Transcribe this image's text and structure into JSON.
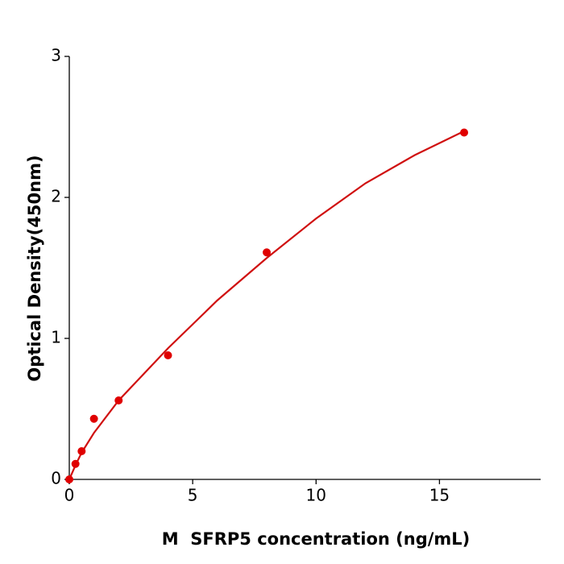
{
  "chart_data": {
    "type": "scatter",
    "x_label": "M  SFRP5 concentration (ng/mL)",
    "y_label": "Optical Density(450nm)",
    "x": [
      0,
      0.25,
      0.5,
      1,
      2,
      4,
      8,
      16
    ],
    "values": [
      0.0,
      0.11,
      0.2,
      0.43,
      0.56,
      0.88,
      1.61,
      2.46
    ],
    "color": "#e00000",
    "fit": {
      "x": [
        0,
        0.25,
        0.5,
        1,
        2,
        4,
        6,
        8,
        10,
        12,
        14,
        16
      ],
      "values": [
        0,
        0.1,
        0.19,
        0.33,
        0.56,
        0.93,
        1.27,
        1.57,
        1.85,
        2.1,
        2.3,
        2.47
      ],
      "color": "#d01010"
    },
    "xlim": [
      0,
      19.1
    ],
    "ylim": [
      0,
      3
    ],
    "xticks": [
      0,
      5,
      10,
      15
    ],
    "yticks": [
      0,
      1,
      2,
      3
    ]
  }
}
